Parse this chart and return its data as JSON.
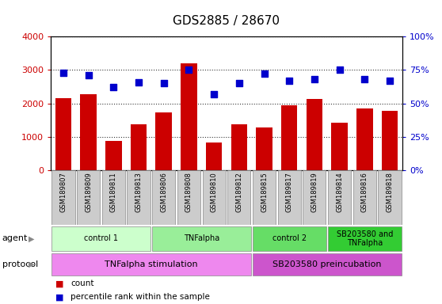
{
  "title": "GDS2885 / 28670",
  "samples": [
    "GSM189807",
    "GSM189809",
    "GSM189811",
    "GSM189813",
    "GSM189806",
    "GSM189808",
    "GSM189810",
    "GSM189812",
    "GSM189815",
    "GSM189817",
    "GSM189819",
    "GSM189814",
    "GSM189816",
    "GSM189818"
  ],
  "counts": [
    2150,
    2280,
    870,
    1380,
    1720,
    3200,
    820,
    1370,
    1270,
    1940,
    2130,
    1430,
    1840,
    1780
  ],
  "percentiles": [
    73,
    71,
    62,
    66,
    65,
    75,
    57,
    65,
    72,
    67,
    68,
    75,
    68,
    67
  ],
  "bar_color": "#cc0000",
  "dot_color": "#0000cc",
  "ylim_left": [
    0,
    4000
  ],
  "yticks_left": [
    0,
    1000,
    2000,
    3000,
    4000
  ],
  "ytick_labels_left": [
    "0",
    "1000",
    "2000",
    "3000",
    "4000"
  ],
  "ytick_labels_right": [
    "0%",
    "25%",
    "50%",
    "75%",
    "100%"
  ],
  "agent_groups": [
    {
      "label": "control 1",
      "start": 0,
      "end": 4,
      "color": "#ccffcc"
    },
    {
      "label": "TNFalpha",
      "start": 4,
      "end": 8,
      "color": "#99ee99"
    },
    {
      "label": "control 2",
      "start": 8,
      "end": 11,
      "color": "#66dd66"
    },
    {
      "label": "SB203580 and\nTNFalpha",
      "start": 11,
      "end": 14,
      "color": "#33cc33"
    }
  ],
  "protocol_groups": [
    {
      "label": "TNFalpha stimulation",
      "start": 0,
      "end": 8,
      "color": "#ee88ee"
    },
    {
      "label": "SB203580 preincubation",
      "start": 8,
      "end": 14,
      "color": "#cc55cc"
    }
  ],
  "tick_label_color_left": "#cc0000",
  "tick_label_color_right": "#0000cc",
  "legend_count_color": "#cc0000",
  "legend_dot_color": "#0000cc",
  "xtick_bg_color": "#cccccc"
}
